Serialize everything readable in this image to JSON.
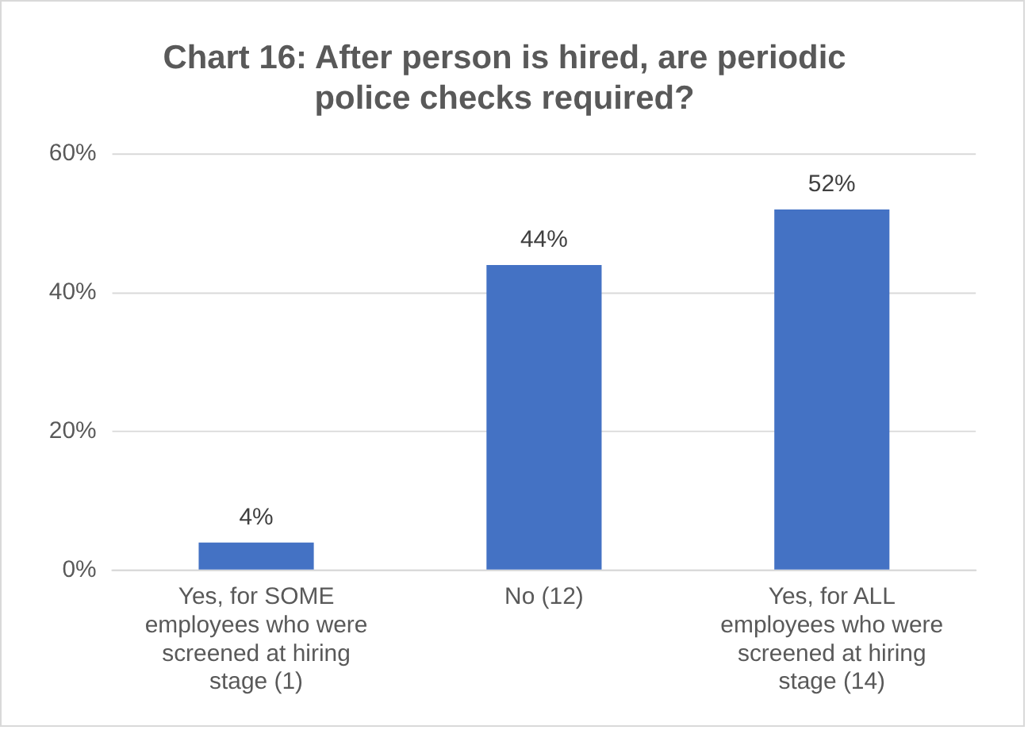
{
  "chart_data": {
    "type": "bar",
    "title": "Chart 16: After person is hired, are periodic police checks required?",
    "categories": [
      "Yes, for SOME employees who were screened at hiring stage (1)",
      "No (12)",
      "Yes, for ALL employees who were screened at hiring stage (14)"
    ],
    "values": [
      4,
      44,
      52
    ],
    "color": "#4472c4",
    "value_labels": [
      "4%",
      "44%",
      "52%"
    ],
    "ylim": [
      0,
      60
    ],
    "yticks": [
      {
        "value": 0,
        "label": "0%"
      },
      {
        "value": 20,
        "label": "20%"
      },
      {
        "value": 40,
        "label": "40%"
      },
      {
        "value": 60,
        "label": "60%"
      }
    ],
    "grid": "y",
    "legend": false
  }
}
